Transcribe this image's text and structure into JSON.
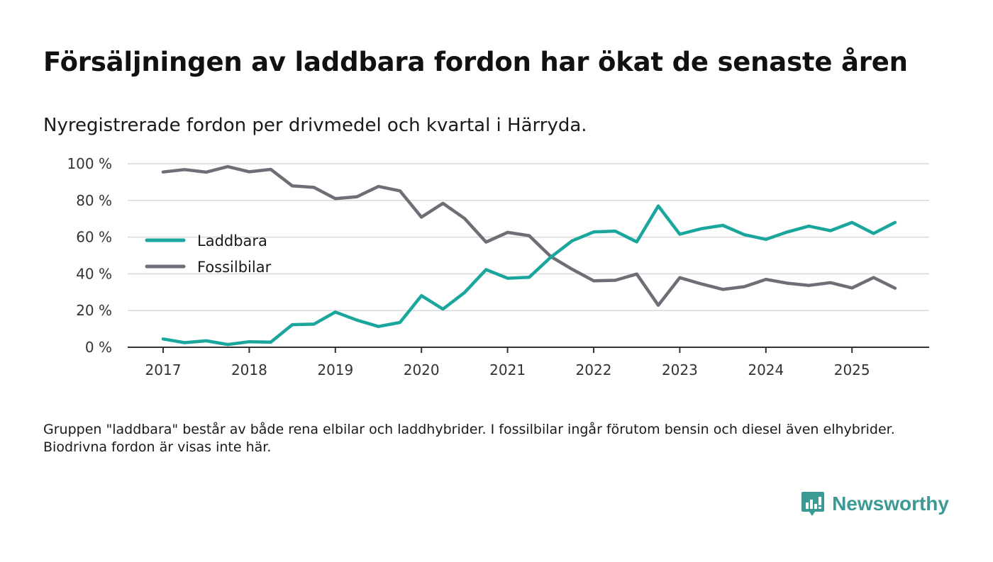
{
  "title": "Försäljningen av laddbara fordon har ökat de senaste åren",
  "subtitle": "Nyregistrerade fordon per drivmedel och kvartal i Härryda.",
  "footnote": "Gruppen \"laddbara\" består av både rena elbilar och laddhybrider. I fossilbilar ingår förutom bensin och diesel även elhybrider. Biodrivna fordon är visas inte här.",
  "brand": {
    "name": "Newsworthy"
  },
  "colors": {
    "laddbara": "#1aa69c",
    "fossil": "#6f6e76",
    "grid": "#d9d9d9",
    "axis": "#333333",
    "brand": "#3b9a93"
  },
  "chart_data": {
    "type": "line",
    "title": "Försäljningen av laddbara fordon har ökat de senaste åren",
    "xlabel": "",
    "ylabel": "",
    "ylim": [
      0,
      100
    ],
    "yticks": [
      0,
      20,
      40,
      60,
      80,
      100
    ],
    "ytick_labels": [
      "0 %",
      "20 %",
      "40 %",
      "60 %",
      "80 %",
      "100 %"
    ],
    "xlim": [
      2017,
      2025.75
    ],
    "xticks": [
      2017,
      2018,
      2019,
      2020,
      2021,
      2022,
      2023,
      2024,
      2025
    ],
    "xtick_labels": [
      "2017",
      "2018",
      "2019",
      "2020",
      "2021",
      "2022",
      "2023",
      "2024",
      "2025"
    ],
    "grid": true,
    "legend_position": "center-left",
    "x": [
      2017.0,
      2017.25,
      2017.5,
      2017.75,
      2018.0,
      2018.25,
      2018.5,
      2018.75,
      2019.0,
      2019.25,
      2019.5,
      2019.75,
      2020.0,
      2020.25,
      2020.5,
      2020.75,
      2021.0,
      2021.25,
      2021.5,
      2021.75,
      2022.0,
      2022.25,
      2022.5,
      2022.75,
      2023.0,
      2023.25,
      2023.5,
      2023.75,
      2024.0,
      2024.25,
      2024.5,
      2024.75,
      2025.0,
      2025.25,
      2025.5
    ],
    "series": [
      {
        "name": "Laddbara",
        "color": "#1aa69c",
        "values": [
          4.5,
          2.5,
          3.5,
          1.5,
          3.0,
          2.8,
          12.3,
          12.6,
          19.2,
          14.8,
          11.3,
          13.5,
          28.1,
          20.8,
          29.8,
          42.3,
          37.6,
          38.1,
          49.0,
          58.0,
          62.8,
          63.3,
          57.4,
          77.0,
          61.6,
          64.6,
          66.4,
          61.3,
          58.8,
          62.8,
          66.0,
          63.5,
          68.0,
          62.0,
          68.0
        ]
      },
      {
        "name": "Fossilbilar",
        "color": "#6f6e76",
        "values": [
          95.5,
          96.8,
          95.4,
          98.4,
          95.6,
          96.9,
          87.9,
          87.1,
          81.0,
          82.0,
          87.6,
          85.2,
          70.9,
          78.4,
          70.2,
          57.3,
          62.6,
          60.8,
          49.5,
          42.5,
          36.2,
          36.5,
          39.9,
          22.9,
          37.9,
          34.5,
          31.5,
          33.0,
          37.0,
          34.9,
          33.7,
          35.2,
          32.3,
          38.0,
          32.2
        ]
      }
    ]
  }
}
